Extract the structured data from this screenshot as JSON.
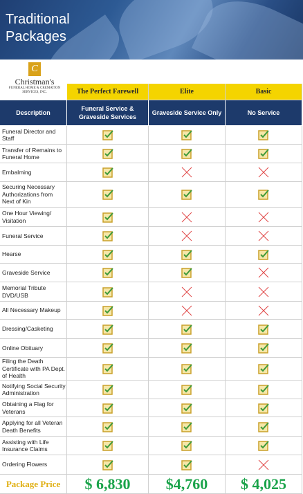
{
  "header": {
    "title": "Traditional Packages"
  },
  "logo": {
    "name": "Christman's",
    "subtitle": "FUNERAL HOME & CREMATION SERVICES, INC."
  },
  "table": {
    "packages": [
      "The Perfect Farewell",
      "Elite",
      "Basic"
    ],
    "description_header": "Description",
    "service_headers": [
      "Funeral Service & Graveside Services",
      "Graveside Service Only",
      "No Service"
    ],
    "rows": [
      {
        "label": "Funeral Director and Staff",
        "included": [
          true,
          true,
          true
        ]
      },
      {
        "label": "Transfer of Remains to Funeral Home",
        "included": [
          true,
          true,
          true
        ]
      },
      {
        "label": "Embalming",
        "included": [
          true,
          false,
          false
        ]
      },
      {
        "label": "Securing Necessary Authorizations from Next of Kin",
        "included": [
          true,
          true,
          true
        ]
      },
      {
        "label": "One Hour Viewing/ Visitation",
        "included": [
          true,
          false,
          false
        ]
      },
      {
        "label": "Funeral Service",
        "included": [
          true,
          false,
          false
        ]
      },
      {
        "label": "Hearse",
        "included": [
          true,
          true,
          true
        ]
      },
      {
        "label": "Graveside Service",
        "included": [
          true,
          true,
          false
        ]
      },
      {
        "label": "Memorial Tribute DVD/USB",
        "included": [
          true,
          false,
          false
        ]
      },
      {
        "label": "All Necessary Makeup",
        "included": [
          true,
          false,
          false
        ]
      },
      {
        "label": "Dressing/Casketing",
        "included": [
          true,
          true,
          true
        ]
      },
      {
        "label": "Online Obituary",
        "included": [
          true,
          true,
          true
        ]
      },
      {
        "label": "Filing the Death Certificate with PA Dept. of Health",
        "included": [
          true,
          true,
          true
        ]
      },
      {
        "label": "Notifying Social Security Administration",
        "included": [
          true,
          true,
          true
        ]
      },
      {
        "label": "Obtaining a Flag for Veterans",
        "included": [
          true,
          true,
          true
        ]
      },
      {
        "label": "Applying for all Veteran Death Benefits",
        "included": [
          true,
          true,
          true
        ]
      },
      {
        "label": "Assisting with Life Insurance Claims",
        "included": [
          true,
          true,
          true
        ]
      },
      {
        "label": "Ordering Flowers",
        "included": [
          true,
          true,
          false
        ]
      }
    ],
    "price_label": "Package Price",
    "prices": [
      "$ 6,830",
      "$4,760",
      "$ 4,025"
    ]
  }
}
